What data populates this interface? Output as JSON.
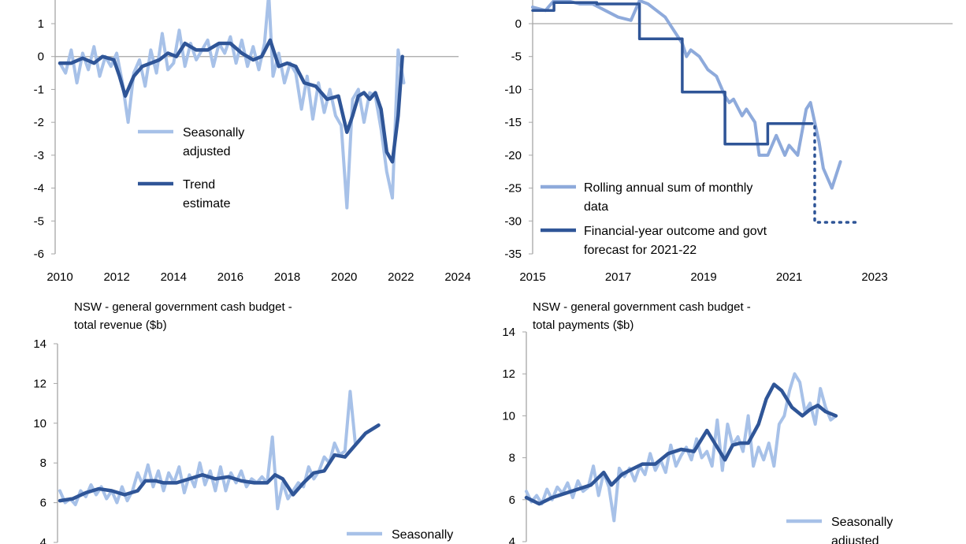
{
  "colors": {
    "light": "#a7c1e8",
    "dark": "#2f5597",
    "mid": "#8eaadb",
    "axis": "#a6a6a6"
  },
  "chart_data": [
    {
      "id": "tl",
      "type": "line",
      "title": [],
      "x_ticks": [
        "2010",
        "2012",
        "2014",
        "2016",
        "2018",
        "2020",
        "2022",
        "2024"
      ],
      "y_ticks": [
        "1",
        "0",
        "-1",
        "-2",
        "-3",
        "-4",
        "-5",
        "-6"
      ],
      "xlim": [
        2010,
        2024
      ],
      "ylim": [
        -6,
        1.7
      ],
      "legend_position": "center",
      "legend": [
        {
          "lines": [
            "Seasonally",
            "adjusted"
          ]
        },
        {
          "lines": [
            "Trend",
            "estimate"
          ]
        }
      ],
      "series": [
        {
          "name": "Seasonally adjusted",
          "color": "#a7c1e8",
          "width": 4,
          "x": [
            2010,
            2010.2,
            2010.4,
            2010.6,
            2010.8,
            2011,
            2011.2,
            2011.4,
            2011.6,
            2011.8,
            2012,
            2012.2,
            2012.4,
            2012.6,
            2012.8,
            2013,
            2013.2,
            2013.4,
            2013.6,
            2013.8,
            2014,
            2014.2,
            2014.4,
            2014.6,
            2014.8,
            2015,
            2015.2,
            2015.4,
            2015.6,
            2015.8,
            2016,
            2016.2,
            2016.4,
            2016.6,
            2016.8,
            2017,
            2017.2,
            2017.35,
            2017.5,
            2017.7,
            2017.9,
            2018.1,
            2018.3,
            2018.5,
            2018.7,
            2018.9,
            2019.1,
            2019.3,
            2019.5,
            2019.7,
            2019.9,
            2020.1,
            2020.3,
            2020.5,
            2020.7,
            2020.9,
            2021.1,
            2021.3,
            2021.5,
            2021.7,
            2021.9,
            2022.1
          ],
          "y": [
            -0.2,
            -0.5,
            0.2,
            -0.8,
            0.1,
            -0.4,
            0.3,
            -0.6,
            0.0,
            -0.3,
            0.1,
            -0.8,
            -2.0,
            -0.5,
            -0.1,
            -0.9,
            0.2,
            -0.5,
            0.7,
            -0.4,
            -0.2,
            0.8,
            -0.3,
            0.4,
            -0.1,
            0.2,
            0.5,
            -0.3,
            0.4,
            0.1,
            0.6,
            -0.2,
            0.5,
            -0.3,
            0.3,
            -0.4,
            0.4,
            1.9,
            -0.6,
            0.1,
            -0.8,
            -0.2,
            -0.5,
            -1.6,
            -0.6,
            -1.9,
            -0.8,
            -1.7,
            -1.0,
            -1.8,
            -2.1,
            -4.6,
            -1.3,
            -1.0,
            -2.0,
            -1.1,
            -1.2,
            -2.2,
            -3.5,
            -4.3,
            0.2,
            -0.8
          ]
        },
        {
          "name": "Trend estimate",
          "color": "#2f5597",
          "width": 4.5,
          "x": [
            2010,
            2010.4,
            2010.8,
            2011.2,
            2011.5,
            2011.9,
            2012.1,
            2012.3,
            2012.6,
            2012.9,
            2013.2,
            2013.5,
            2013.8,
            2014.1,
            2014.4,
            2014.8,
            2015.2,
            2015.6,
            2016,
            2016.4,
            2016.8,
            2017.1,
            2017.4,
            2017.7,
            2018,
            2018.3,
            2018.6,
            2019,
            2019.4,
            2019.8,
            2020.1,
            2020.3,
            2020.5,
            2020.7,
            2020.9,
            2021.1,
            2021.3,
            2021.5,
            2021.7,
            2021.9,
            2022.05
          ],
          "y": [
            -0.2,
            -0.2,
            -0.05,
            -0.2,
            0.0,
            -0.1,
            -0.6,
            -1.2,
            -0.6,
            -0.3,
            -0.2,
            -0.1,
            0.1,
            0.0,
            0.4,
            0.2,
            0.2,
            0.4,
            0.4,
            0.1,
            -0.1,
            0.0,
            0.5,
            -0.3,
            -0.2,
            -0.3,
            -0.8,
            -0.9,
            -1.3,
            -1.2,
            -2.3,
            -1.8,
            -1.2,
            -1.1,
            -1.3,
            -1.1,
            -1.6,
            -2.9,
            -3.2,
            -1.8,
            0.0
          ]
        }
      ]
    },
    {
      "id": "tr",
      "type": "line",
      "title": [],
      "x_ticks": [
        "2015",
        "2017",
        "2019",
        "2021",
        "2023"
      ],
      "y_ticks": [
        "0",
        "-5",
        "-10",
        "-15",
        "-20",
        "-25",
        "-30",
        "-35"
      ],
      "xlim": [
        2015,
        2024
      ],
      "ylim": [
        -35,
        4
      ],
      "legend_position": "bottom-left",
      "legend": [
        {
          "lines": [
            "Rolling annual sum of monthly",
            "data"
          ]
        },
        {
          "lines": [
            "Financial-year outcome and govt",
            "forecast for 2021-22"
          ]
        }
      ],
      "series": [
        {
          "name": "Rolling annual sum of monthly data",
          "color": "#8eaadb",
          "width": 4,
          "x": [
            2015,
            2015.3,
            2015.5,
            2015.8,
            2016.1,
            2016.4,
            2016.7,
            2017.0,
            2017.3,
            2017.5,
            2017.7,
            2017.9,
            2018.1,
            2018.3,
            2018.5,
            2018.6,
            2018.7,
            2018.9,
            2019.1,
            2019.3,
            2019.5,
            2019.6,
            2019.7,
            2019.9,
            2020.0,
            2020.2,
            2020.3,
            2020.5,
            2020.7,
            2020.9,
            2021.0,
            2021.2,
            2021.4,
            2021.5,
            2021.6,
            2021.7,
            2021.8,
            2022.0,
            2022.2
          ],
          "y": [
            2.5,
            2.0,
            3.5,
            3.5,
            3.0,
            3.0,
            2.0,
            1.0,
            0.5,
            3.5,
            3.0,
            2.0,
            1.0,
            -1.0,
            -3.0,
            -5.0,
            -4.0,
            -5.0,
            -7.0,
            -8.0,
            -11.0,
            -12.0,
            -11.5,
            -14.0,
            -13.0,
            -15.0,
            -20.0,
            -20.0,
            -17.0,
            -20.0,
            -18.5,
            -20.0,
            -13.0,
            -12.0,
            -15.0,
            -18.0,
            -22.0,
            -25.0,
            -21.0
          ]
        },
        {
          "name": "Financial-year outcome and govt forecast for 2021-22",
          "color": "#2f5597",
          "width": 3.5,
          "step": true,
          "x": [
            2015,
            2015.5,
            2015.5,
            2016.5,
            2016.5,
            2017.5,
            2017.5,
            2018.5,
            2018.5,
            2019.5,
            2019.5,
            2020.5,
            2020.5,
            2021.5
          ],
          "y": [
            2,
            2,
            3.2,
            3.2,
            3,
            3,
            -2.3,
            -2.3,
            -10.4,
            -10.4,
            -18.3,
            -18.3,
            -15.2,
            -15.2
          ]
        },
        {
          "name": "Forecast",
          "color": "#2f5597",
          "width": 3.5,
          "dashed": true,
          "x": [
            2021.5,
            2021.6,
            2021.6,
            2022.6
          ],
          "y": [
            -15.2,
            -15.2,
            -30.2,
            -30.2
          ]
        }
      ]
    },
    {
      "id": "bl",
      "type": "line",
      "title": [
        "NSW - general government cash budget -",
        "total revenue ($b)"
      ],
      "x_ticks": [],
      "y_ticks": [
        "14",
        "12",
        "10",
        "8",
        "6",
        "4"
      ],
      "xlim": [
        2010,
        2024
      ],
      "ylim": [
        4,
        14
      ],
      "legend_position": "bottom-right",
      "legend": [
        {
          "lines": [
            "Seasonally"
          ]
        }
      ],
      "series": [
        {
          "name": "Seasonally adjusted",
          "color": "#a7c1e8",
          "width": 4,
          "x": [
            2010,
            2010.2,
            2010.4,
            2010.6,
            2010.8,
            2011,
            2011.2,
            2011.4,
            2011.6,
            2011.8,
            2012,
            2012.2,
            2012.4,
            2012.6,
            2012.8,
            2013,
            2013.2,
            2013.4,
            2013.6,
            2013.8,
            2014,
            2014.2,
            2014.4,
            2014.6,
            2014.8,
            2015,
            2015.2,
            2015.4,
            2015.6,
            2015.8,
            2016,
            2016.2,
            2016.4,
            2016.6,
            2016.8,
            2017,
            2017.2,
            2017.4,
            2017.6,
            2017.8,
            2018,
            2018.2,
            2018.4,
            2018.6,
            2018.8,
            2019,
            2019.2,
            2019.4,
            2019.6,
            2019.8,
            2020,
            2020.2,
            2020.4,
            2020.6,
            2020.8,
            2021,
            2021.2,
            2021.4
          ],
          "y": [
            6.6,
            6.0,
            6.2,
            5.9,
            6.6,
            6.3,
            6.9,
            6.4,
            6.8,
            6.2,
            6.6,
            6.0,
            6.8,
            6.1,
            6.6,
            7.5,
            6.9,
            7.9,
            6.8,
            7.6,
            6.6,
            7.5,
            7.0,
            7.8,
            6.5,
            7.4,
            6.8,
            8.0,
            6.9,
            7.6,
            6.6,
            7.8,
            6.6,
            7.5,
            7.0,
            7.6,
            6.8,
            7.2,
            7.0,
            7.3,
            7.0,
            9.3,
            5.7,
            7.0,
            6.2,
            6.6,
            7.0,
            6.8,
            7.8,
            7.2,
            7.6,
            8.3,
            8.0,
            9.0,
            8.4,
            8.6,
            11.6,
            9.0
          ],
          "x_end": 2022.3
        },
        {
          "name": "Trend estimate",
          "color": "#2f5597",
          "width": 4.5,
          "x": [
            2010,
            2010.5,
            2011,
            2011.5,
            2012,
            2012.5,
            2013,
            2013.3,
            2013.7,
            2014,
            2014.5,
            2015,
            2015.5,
            2016,
            2016.5,
            2017,
            2017.5,
            2018,
            2018.3,
            2018.6,
            2019,
            2019.4,
            2019.8,
            2020.2,
            2020.6,
            2021,
            2021.4,
            2021.8,
            2022.3
          ],
          "y": [
            6.1,
            6.2,
            6.5,
            6.7,
            6.6,
            6.4,
            6.6,
            7.1,
            7.1,
            7.0,
            7.0,
            7.2,
            7.4,
            7.2,
            7.3,
            7.1,
            7.0,
            7.0,
            7.4,
            7.2,
            6.4,
            7.0,
            7.5,
            7.6,
            8.4,
            8.3,
            8.9,
            9.5,
            9.9
          ]
        }
      ]
    },
    {
      "id": "br",
      "type": "line",
      "title": [
        "NSW - general government cash budget -",
        "total payments ($b)"
      ],
      "x_ticks": [],
      "y_ticks": [
        "14",
        "12",
        "10",
        "8",
        "6",
        "4"
      ],
      "xlim": [
        2010,
        2024
      ],
      "ylim": [
        4,
        14
      ],
      "legend_position": "bottom-right",
      "legend": [
        {
          "lines": [
            "Seasonally",
            "adjusted"
          ]
        }
      ],
      "series": [
        {
          "name": "Seasonally adjusted",
          "color": "#a7c1e8",
          "width": 4,
          "x": [
            2010,
            2010.2,
            2010.4,
            2010.6,
            2010.8,
            2011,
            2011.2,
            2011.4,
            2011.6,
            2011.8,
            2012,
            2012.2,
            2012.4,
            2012.6,
            2012.8,
            2013,
            2013.2,
            2013.4,
            2013.6,
            2013.8,
            2014,
            2014.2,
            2014.4,
            2014.6,
            2014.8,
            2015,
            2015.2,
            2015.4,
            2015.6,
            2015.8,
            2016,
            2016.2,
            2016.4,
            2016.6,
            2016.8,
            2017,
            2017.2,
            2017.4,
            2017.6,
            2017.8,
            2018,
            2018.2,
            2018.4,
            2018.6,
            2018.8,
            2019,
            2019.2,
            2019.4,
            2019.6,
            2019.8,
            2020,
            2020.2,
            2020.4,
            2020.6,
            2020.8,
            2021,
            2021.2,
            2021.4,
            2021.6,
            2021.8,
            2022
          ],
          "y": [
            6.4,
            5.9,
            6.2,
            5.8,
            6.5,
            6.0,
            6.6,
            6.3,
            6.8,
            6.1,
            6.9,
            6.4,
            6.6,
            7.6,
            6.2,
            7.3,
            6.6,
            5.0,
            7.5,
            7.1,
            7.5,
            6.9,
            7.6,
            7.2,
            8.2,
            7.4,
            7.9,
            7.3,
            8.6,
            7.6,
            8.1,
            8.5,
            7.9,
            8.9,
            8.0,
            8.3,
            7.6,
            9.8,
            7.4,
            9.6,
            8.6,
            9.0,
            8.3,
            10.0,
            7.6,
            8.5,
            7.9,
            8.7,
            7.6,
            9.6,
            10.0,
            11.2,
            12.0,
            11.6,
            10.2,
            10.6,
            9.6,
            11.3,
            10.4,
            9.8,
            10.0
          ]
        },
        {
          "name": "Trend estimate",
          "color": "#2f5597",
          "width": 4.5,
          "x": [
            2010,
            2010.5,
            2011,
            2011.5,
            2012,
            2012.5,
            2013,
            2013.3,
            2013.7,
            2014,
            2014.5,
            2015,
            2015.5,
            2016,
            2016.5,
            2017,
            2017.3,
            2017.7,
            2018,
            2018.3,
            2018.6,
            2019,
            2019.3,
            2019.6,
            2019.9,
            2020.3,
            2020.7,
            2021,
            2021.3,
            2021.6,
            2022
          ],
          "y": [
            6.1,
            5.8,
            6.1,
            6.3,
            6.5,
            6.7,
            7.3,
            6.7,
            7.2,
            7.4,
            7.7,
            7.7,
            8.2,
            8.4,
            8.3,
            9.3,
            8.7,
            7.9,
            8.6,
            8.7,
            8.7,
            9.6,
            10.8,
            11.5,
            11.2,
            10.4,
            10.0,
            10.3,
            10.5,
            10.2,
            10.0
          ]
        }
      ]
    }
  ]
}
